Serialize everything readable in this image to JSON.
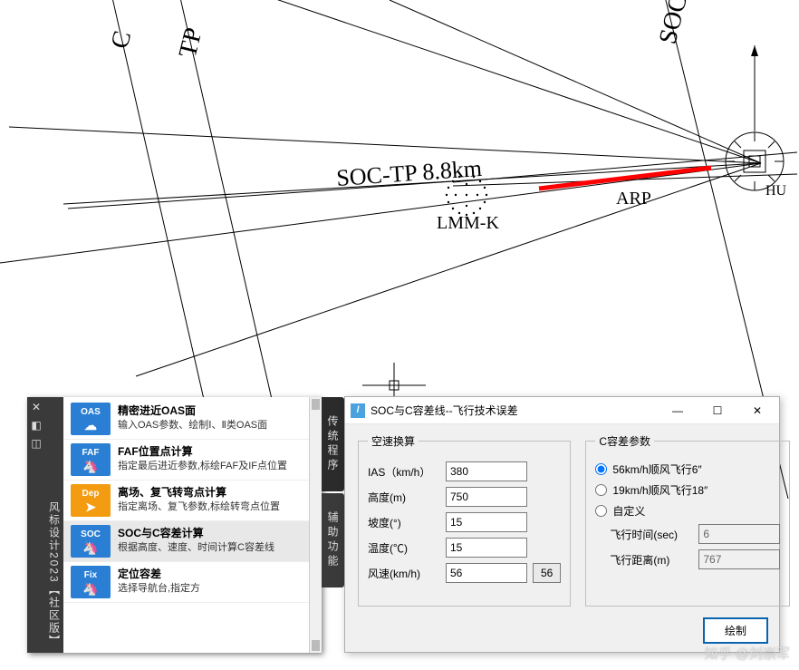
{
  "cad": {
    "labels": {
      "c": "C",
      "tp": "TP",
      "soc": "SOC",
      "distance": "SOC-TP  8.8km",
      "lmm": "LMM-K",
      "arp": "ARP",
      "hu": "HU"
    },
    "colors": {
      "guideline": "#000000",
      "highlight": "#ff0000",
      "annotation_text": "#000000",
      "background": "#ffffff"
    }
  },
  "palette": {
    "left_rail_top_icons": [
      "✕",
      "◧",
      "◫"
    ],
    "left_rail_label": "风标设计2023【社区版】",
    "side_tabs": [
      "传统程序",
      "辅助功能"
    ],
    "items": [
      {
        "badge": "OAS",
        "icon": "☁",
        "color": "#2a7fd4",
        "title": "精密进近OAS面",
        "desc": "输入OAS参数、绘制Ⅰ、Ⅱ类OAS面"
      },
      {
        "badge": "FAF",
        "icon": "🦄",
        "color": "#2a7fd4",
        "title": "FAF位置点计算",
        "desc": "指定最后进近参数,标绘FAF及IF点位置"
      },
      {
        "badge": "Dep",
        "icon": "➤",
        "color": "#f39c12",
        "title": "离场、复飞转弯点计算",
        "desc": "指定离场、复飞参数,标绘转弯点位置"
      },
      {
        "badge": "SOC",
        "icon": "🦄",
        "color": "#2a7fd4",
        "title": "SOC与C容差计算",
        "desc": "根据高度、速度、时间计算C容差线",
        "selected": true
      },
      {
        "badge": "Fix",
        "icon": "🦄",
        "color": "#2a7fd4",
        "title": "定位容差",
        "desc": "选择导航台,指定方"
      }
    ]
  },
  "dialog": {
    "title": "SOC与C容差线--飞行技术误差",
    "groups": {
      "speed": {
        "legend": "空速换算",
        "ias": {
          "label": "IAS（km/h）",
          "value": "380"
        },
        "alt": {
          "label": "高度(m)",
          "value": "750"
        },
        "slope": {
          "label": "坡度(°)",
          "value": "15"
        },
        "temp": {
          "label": "温度(℃)",
          "value": "15"
        },
        "wind": {
          "label": "风速(km/h)",
          "value": "56",
          "btn": "56"
        }
      },
      "c": {
        "legend": "C容差参数",
        "opt1": "56km/h顺风飞行6″",
        "opt2": "19km/h顺风飞行18″",
        "opt3": "自定义",
        "time": {
          "label": "飞行时间(sec)",
          "value": "6"
        },
        "dist": {
          "label": "飞行距离(m)",
          "value": "767"
        }
      }
    },
    "ok": "绘制"
  },
  "watermark": "知乎 @刘崇军"
}
